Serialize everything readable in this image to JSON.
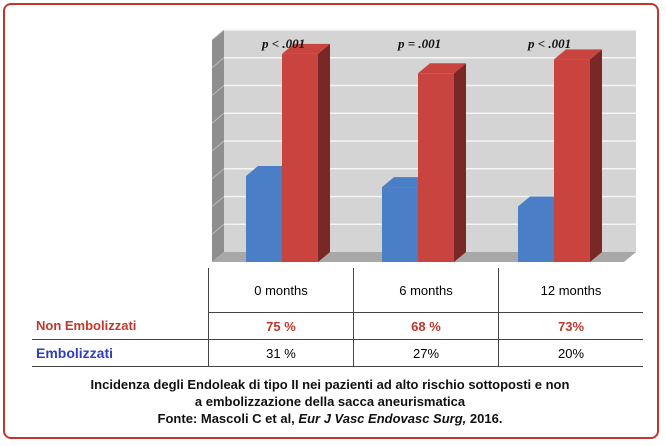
{
  "chart_data": {
    "type": "bar",
    "categories": [
      "0 months",
      "6 months",
      "12 months"
    ],
    "series": [
      {
        "name": "Non Embolizzati",
        "values": [
          75,
          68,
          73
        ],
        "labels": [
          "75 %",
          "68 %",
          "73%"
        ],
        "color": "#c9433f"
      },
      {
        "name": "Embolizzati",
        "values": [
          31,
          27,
          20
        ],
        "labels": [
          "31 %",
          "27%",
          "20%"
        ],
        "color": "#4a7fc8"
      }
    ],
    "annotations": [
      "p < .001",
      "p = .001",
      "p < .001"
    ],
    "ylim": [
      0,
      80
    ],
    "grid": true,
    "style": "3d"
  },
  "caption": {
    "line1": "Incidenza degli Endoleak di tipo II nei pazienti ad alto rischio sottoposti e non",
    "line2": "a embolizzazione della sacca aneurismatica",
    "line3_prefix": "Fonte: Mascoli C et al, ",
    "line3_journal": "Eur J Vasc Endovasc Surg,",
    "line3_suffix": " 2016."
  }
}
